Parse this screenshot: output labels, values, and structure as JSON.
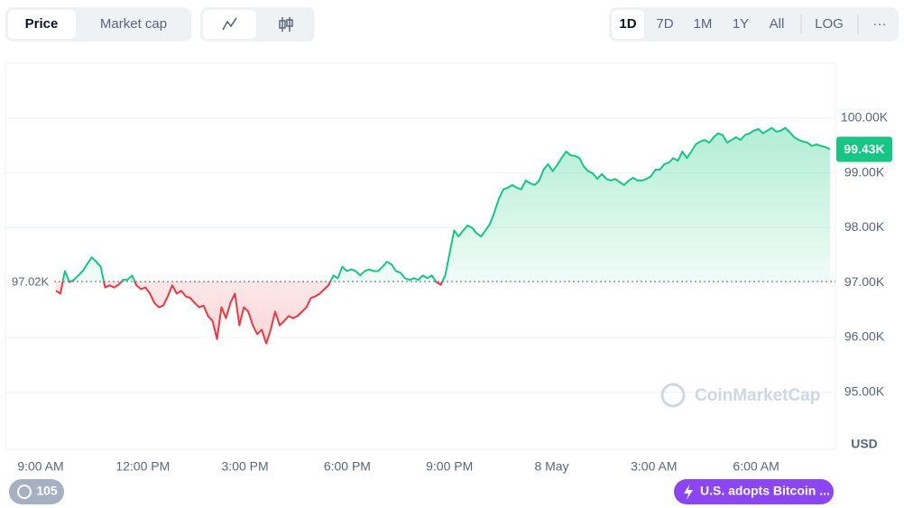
{
  "toolbar": {
    "tabs": [
      "Price",
      "Market cap"
    ],
    "ranges": [
      "1D",
      "7D",
      "1M",
      "1Y",
      "All"
    ],
    "scale": "LOG",
    "more": "···"
  },
  "chart_data": {
    "type": "line",
    "x_labels": [
      "9:00 AM",
      "12:00 PM",
      "3:00 PM",
      "6:00 PM",
      "9:00 PM",
      "8 May",
      "3:00 AM",
      "6:00 AM"
    ],
    "values": [
      96.85,
      96.8,
      97.21,
      97.01,
      97.05,
      97.13,
      97.21,
      97.34,
      97.46,
      97.38,
      97.29,
      96.91,
      96.95,
      96.91,
      96.96,
      97.05,
      97.05,
      97.13,
      96.95,
      96.88,
      96.91,
      96.8,
      96.63,
      96.55,
      96.58,
      96.75,
      96.95,
      96.8,
      96.85,
      96.75,
      96.72,
      96.63,
      96.55,
      96.58,
      96.39,
      96.3,
      95.97,
      96.55,
      96.35,
      96.63,
      96.8,
      96.22,
      96.55,
      96.47,
      96.22,
      96.06,
      96.14,
      95.89,
      96.14,
      96.47,
      96.22,
      96.3,
      96.39,
      96.35,
      96.39,
      96.47,
      96.55,
      96.72,
      96.75,
      96.8,
      96.88,
      96.96,
      97.13,
      97.08,
      97.29,
      97.21,
      97.24,
      97.21,
      97.13,
      97.21,
      97.24,
      97.21,
      97.21,
      97.29,
      97.38,
      97.33,
      97.21,
      97.18,
      97.08,
      97.05,
      97.08,
      97.05,
      97.13,
      97.08,
      97.13,
      97.01,
      96.96,
      97.13,
      97.54,
      97.95,
      97.84,
      97.95,
      98.04,
      98.0,
      97.9,
      97.84,
      97.95,
      98.07,
      98.28,
      98.53,
      98.7,
      98.73,
      98.78,
      98.73,
      98.7,
      98.86,
      98.81,
      98.78,
      98.86,
      99.06,
      99.16,
      99.03,
      99.14,
      99.27,
      99.39,
      99.32,
      99.31,
      99.27,
      99.11,
      99.03,
      98.99,
      98.89,
      98.98,
      98.89,
      98.86,
      98.89,
      98.83,
      98.78,
      98.86,
      98.91,
      98.86,
      98.86,
      98.89,
      98.94,
      99.06,
      99.06,
      99.16,
      99.19,
      99.27,
      99.22,
      99.39,
      99.27,
      99.39,
      99.52,
      99.57,
      99.6,
      99.55,
      99.65,
      99.72,
      99.69,
      99.55,
      99.6,
      99.65,
      99.6,
      99.69,
      99.72,
      99.77,
      99.8,
      99.72,
      99.77,
      99.82,
      99.75,
      99.77,
      99.82,
      99.74,
      99.65,
      99.6,
      99.57,
      99.55,
      99.49,
      99.52,
      99.49,
      99.47,
      99.43
    ],
    "up_color": "#16c784",
    "down_color": "#ea3943",
    "ylim": [
      93.96,
      101.0
    ],
    "yticks": [
      {
        "value": 95,
        "label": "95.00K"
      },
      {
        "value": 96,
        "label": "96.00K"
      },
      {
        "value": 97,
        "label": "97.00K"
      },
      {
        "value": 98,
        "label": "98.00K"
      },
      {
        "value": 99,
        "label": "99.00K"
      },
      {
        "value": 100,
        "label": "100.00K"
      }
    ],
    "y_unit": "USD",
    "grid": true,
    "baseline": {
      "value": 97.02,
      "label": "97.02K"
    },
    "last_price": {
      "value": 99.43,
      "label": "99.43K"
    },
    "watermark": "CoinMarketCap"
  },
  "footer": {
    "history_count": "105",
    "news": "U.S. adopts Bitcoin ..."
  }
}
